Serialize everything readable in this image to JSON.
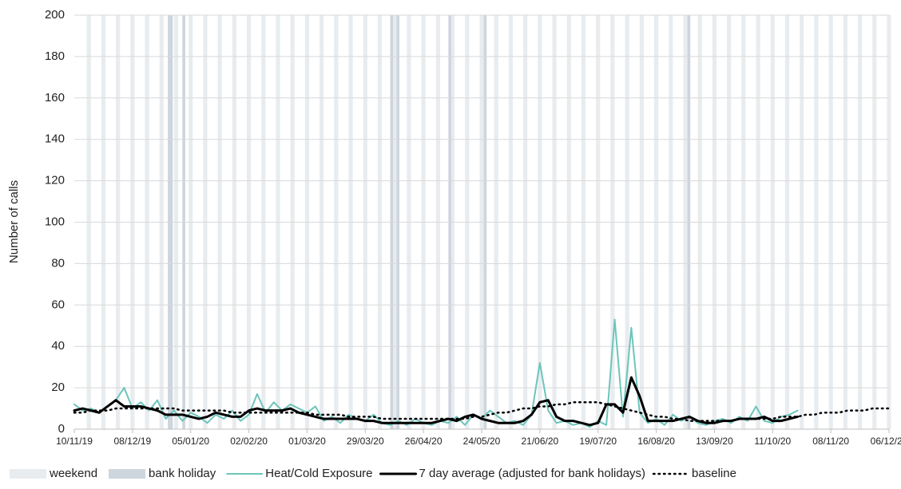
{
  "chart_data": {
    "type": "line",
    "y_label": "Number of calls",
    "xlim": [
      "10/11/19",
      "06/12/20"
    ],
    "xticks": [
      "10/11/19",
      "08/12/19",
      "05/01/20",
      "02/02/20",
      "01/03/20",
      "29/03/20",
      "26/04/20",
      "24/05/20",
      "21/06/20",
      "19/07/20",
      "16/08/20",
      "13/09/20",
      "11/10/20",
      "08/11/20",
      "06/12/20"
    ],
    "ylim": [
      0,
      200
    ],
    "yticks": [
      0,
      20,
      40,
      60,
      80,
      100,
      120,
      140,
      160,
      180,
      200
    ],
    "grid": true,
    "shading": [
      {
        "name": "weekend",
        "color": "#e9ecef"
      },
      {
        "name": "bank holiday",
        "color": "#cdd5dd"
      }
    ],
    "bank_holidays": [
      "25/12/19",
      "26/12/19",
      "01/01/20",
      "10/04/20",
      "13/04/20",
      "08/05/20",
      "25/05/20",
      "31/08/20"
    ],
    "x": [
      "10/11/19",
      "14/11/19",
      "18/11/19",
      "22/11/19",
      "26/11/19",
      "30/11/19",
      "04/12/19",
      "08/12/19",
      "12/12/19",
      "16/12/19",
      "20/12/19",
      "24/12/19",
      "28/12/19",
      "01/01/20",
      "05/01/20",
      "09/01/20",
      "13/01/20",
      "17/01/20",
      "21/01/20",
      "25/01/20",
      "29/01/20",
      "02/02/20",
      "06/02/20",
      "10/02/20",
      "14/02/20",
      "18/02/20",
      "22/02/20",
      "26/02/20",
      "01/03/20",
      "05/03/20",
      "09/03/20",
      "13/03/20",
      "17/03/20",
      "21/03/20",
      "25/03/20",
      "29/03/20",
      "02/04/20",
      "06/04/20",
      "10/04/20",
      "14/04/20",
      "18/04/20",
      "22/04/20",
      "26/04/20",
      "30/04/20",
      "04/05/20",
      "08/05/20",
      "12/05/20",
      "16/05/20",
      "20/05/20",
      "24/05/20",
      "28/05/20",
      "01/06/20",
      "05/06/20",
      "09/06/20",
      "13/06/20",
      "17/06/20",
      "21/06/20",
      "25/06/20",
      "29/06/20",
      "03/07/20",
      "07/07/20",
      "11/07/20",
      "15/07/20",
      "19/07/20",
      "23/07/20",
      "27/07/20",
      "31/07/20",
      "04/08/20",
      "08/08/20",
      "12/08/20",
      "16/08/20",
      "20/08/20",
      "24/08/20",
      "28/08/20",
      "01/09/20",
      "05/09/20",
      "09/09/20",
      "13/09/20",
      "17/09/20",
      "21/09/20",
      "25/09/20",
      "29/09/20",
      "03/10/20",
      "07/10/20",
      "11/10/20",
      "15/10/20",
      "19/10/20",
      "23/10/20",
      "27/10/20",
      "31/10/20",
      "04/11/20",
      "08/11/20",
      "12/11/20",
      "16/11/20",
      "20/11/20",
      "24/11/20",
      "28/11/20",
      "02/12/20",
      "06/12/20"
    ],
    "series": [
      {
        "name": "Heat/Cold Exposure",
        "color": "#6cc5bb",
        "width": 2,
        "dash": "none",
        "values": [
          12,
          9,
          10,
          8,
          11,
          14,
          20,
          10,
          13,
          9,
          14,
          5,
          9,
          4,
          8,
          6,
          3,
          7,
          5,
          9,
          4,
          7,
          17,
          8,
          13,
          9,
          12,
          10,
          8,
          11,
          4,
          6,
          3,
          7,
          5,
          4,
          7,
          3,
          2,
          4,
          2,
          5,
          3,
          2,
          4,
          3,
          6,
          2,
          7,
          5,
          9,
          6,
          3,
          4,
          2,
          7,
          32,
          9,
          3,
          4,
          2,
          3,
          1,
          4,
          2,
          53,
          6,
          49,
          8,
          3,
          5,
          2,
          7,
          4,
          6,
          3,
          2,
          4,
          5,
          3,
          6,
          4,
          11,
          4,
          3,
          6,
          7,
          9,
          null,
          null,
          null,
          null,
          null,
          null,
          null,
          null,
          null,
          null,
          null
        ]
      },
      {
        "name": "7 day average (adjusted for bank holidays)",
        "color": "#000000",
        "width": 3,
        "dash": "none",
        "values": [
          9,
          10,
          9,
          8,
          11,
          14,
          11,
          11,
          11,
          10,
          9,
          7,
          7,
          7,
          6,
          5,
          6,
          8,
          7,
          6,
          6,
          9,
          10,
          9,
          9,
          9,
          10,
          8,
          7,
          6,
          5,
          5,
          5,
          5,
          5,
          4,
          4,
          3,
          3,
          3,
          3,
          3,
          3,
          3,
          4,
          5,
          4,
          6,
          7,
          5,
          4,
          3,
          3,
          3,
          4,
          7,
          13,
          14,
          6,
          4,
          4,
          3,
          2,
          3,
          12,
          12,
          8,
          25,
          16,
          4,
          4,
          4,
          4,
          5,
          6,
          4,
          3,
          3,
          4,
          4,
          5,
          5,
          5,
          6,
          4,
          4,
          5,
          6,
          null,
          null,
          null,
          null,
          null,
          null,
          null,
          null,
          null,
          null,
          null
        ]
      },
      {
        "name": "baseline",
        "color": "#000000",
        "width": 2.5,
        "dash": "1.5 5",
        "values": [
          8,
          8,
          9,
          9,
          9,
          10,
          10,
          10,
          10,
          10,
          10,
          10,
          10,
          9,
          9,
          9,
          9,
          9,
          9,
          8,
          8,
          8,
          8,
          8,
          8,
          8,
          8,
          8,
          8,
          7,
          7,
          7,
          7,
          6,
          6,
          6,
          6,
          5,
          5,
          5,
          5,
          5,
          5,
          5,
          5,
          5,
          5,
          5,
          6,
          6,
          7,
          8,
          8,
          9,
          10,
          10,
          11,
          11,
          12,
          12,
          13,
          13,
          13,
          13,
          12,
          11,
          10,
          9,
          8,
          7,
          6,
          6,
          5,
          5,
          4,
          4,
          4,
          4,
          4,
          4,
          5,
          5,
          5,
          5,
          5,
          6,
          6,
          6,
          7,
          7,
          8,
          8,
          8,
          9,
          9,
          9,
          10,
          10,
          10
        ]
      }
    ]
  }
}
